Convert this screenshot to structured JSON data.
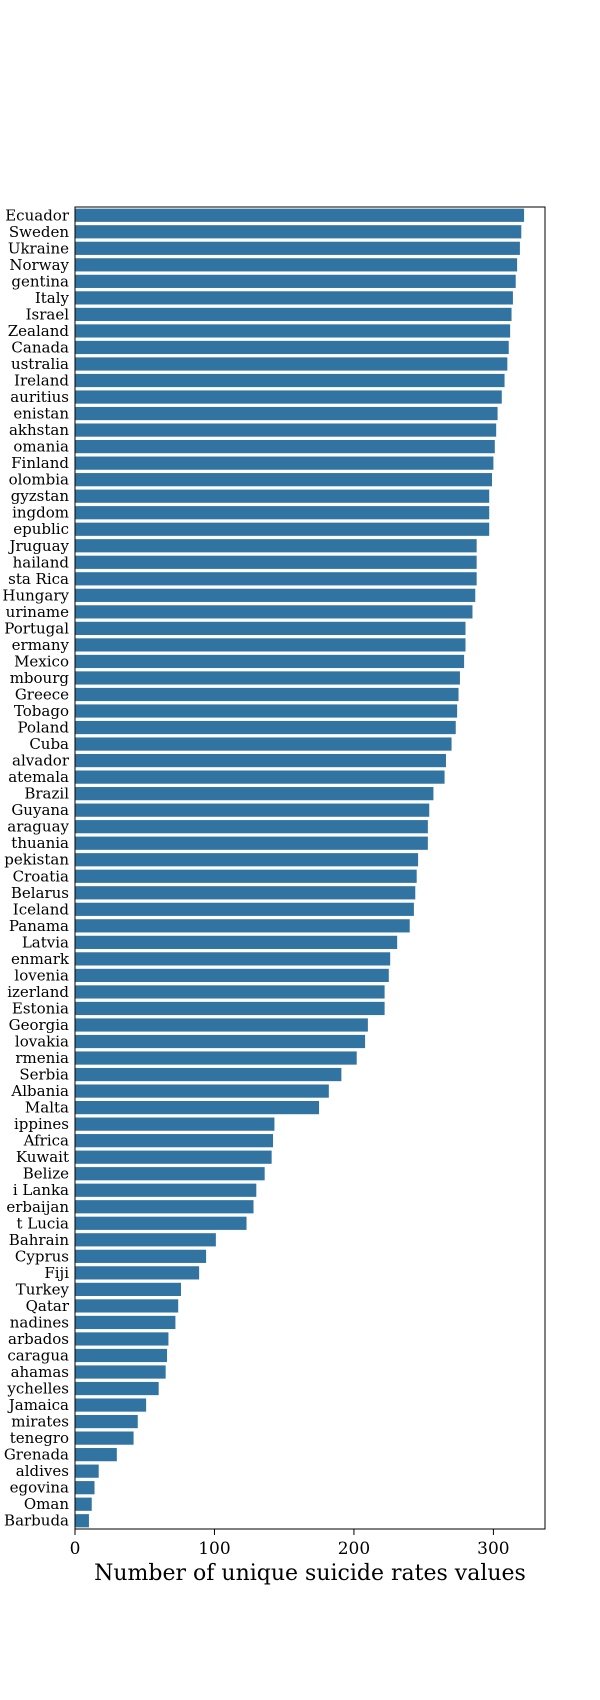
{
  "chart_data": {
    "type": "bar",
    "orientation": "horizontal",
    "xlabel": "Number of unique suicide rates values",
    "xlim": [
      0,
      337
    ],
    "xticks": [
      0,
      100,
      200,
      300
    ],
    "bar_color": "#3274a1",
    "categories": [
      "Ecuador",
      "Sweden",
      "Ukraine",
      "Norway",
      "gentina",
      "Italy",
      "Israel",
      "Zealand",
      "Canada",
      "ustralia",
      "Ireland",
      "auritius",
      "enistan",
      "akhstan",
      "omania",
      "Finland",
      "olombia",
      "gyzstan",
      "ingdom",
      "epublic",
      "Jruguay",
      "hailand",
      "sta Rica",
      "Hungary",
      "uriname",
      "Portugal",
      "ermany",
      "Mexico",
      "mbourg",
      "Greece",
      "Tobago",
      "Poland",
      "Cuba",
      "alvador",
      "atemala",
      "Brazil",
      "Guyana",
      "araguay",
      "thuania",
      "pekistan",
      "Croatia",
      "Belarus",
      "Iceland",
      "Panama",
      "Latvia",
      "enmark",
      "lovenia",
      "izerland",
      "Estonia",
      "Georgia",
      "lovakia",
      "rmenia",
      "Serbia",
      "Albania",
      "Malta",
      "ippines",
      "Africa",
      "Kuwait",
      "Belize",
      "i Lanka",
      "erbaijan",
      "t Lucia",
      "Bahrain",
      "Cyprus",
      "Fiji",
      "Turkey",
      "Qatar",
      "nadines",
      "arbados",
      "caragua",
      "ahamas",
      "ychelles",
      "Jamaica",
      "mirates",
      "tenegro",
      "Grenada",
      "aldives",
      "egovina",
      "Oman",
      "Barbuda"
    ],
    "values": [
      322,
      320,
      319,
      317,
      316,
      314,
      313,
      312,
      311,
      310,
      308,
      306,
      303,
      302,
      301,
      300,
      299,
      297,
      297,
      297,
      288,
      288,
      288,
      287,
      285,
      280,
      280,
      279,
      276,
      275,
      274,
      273,
      270,
      266,
      265,
      257,
      254,
      253,
      253,
      246,
      245,
      244,
      243,
      240,
      231,
      226,
      225,
      222,
      222,
      210,
      208,
      202,
      191,
      182,
      175,
      143,
      142,
      141,
      136,
      130,
      128,
      123,
      101,
      94,
      89,
      76,
      74,
      72,
      67,
      66,
      65,
      60,
      51,
      45,
      42,
      30,
      17,
      14,
      12,
      10
    ]
  }
}
